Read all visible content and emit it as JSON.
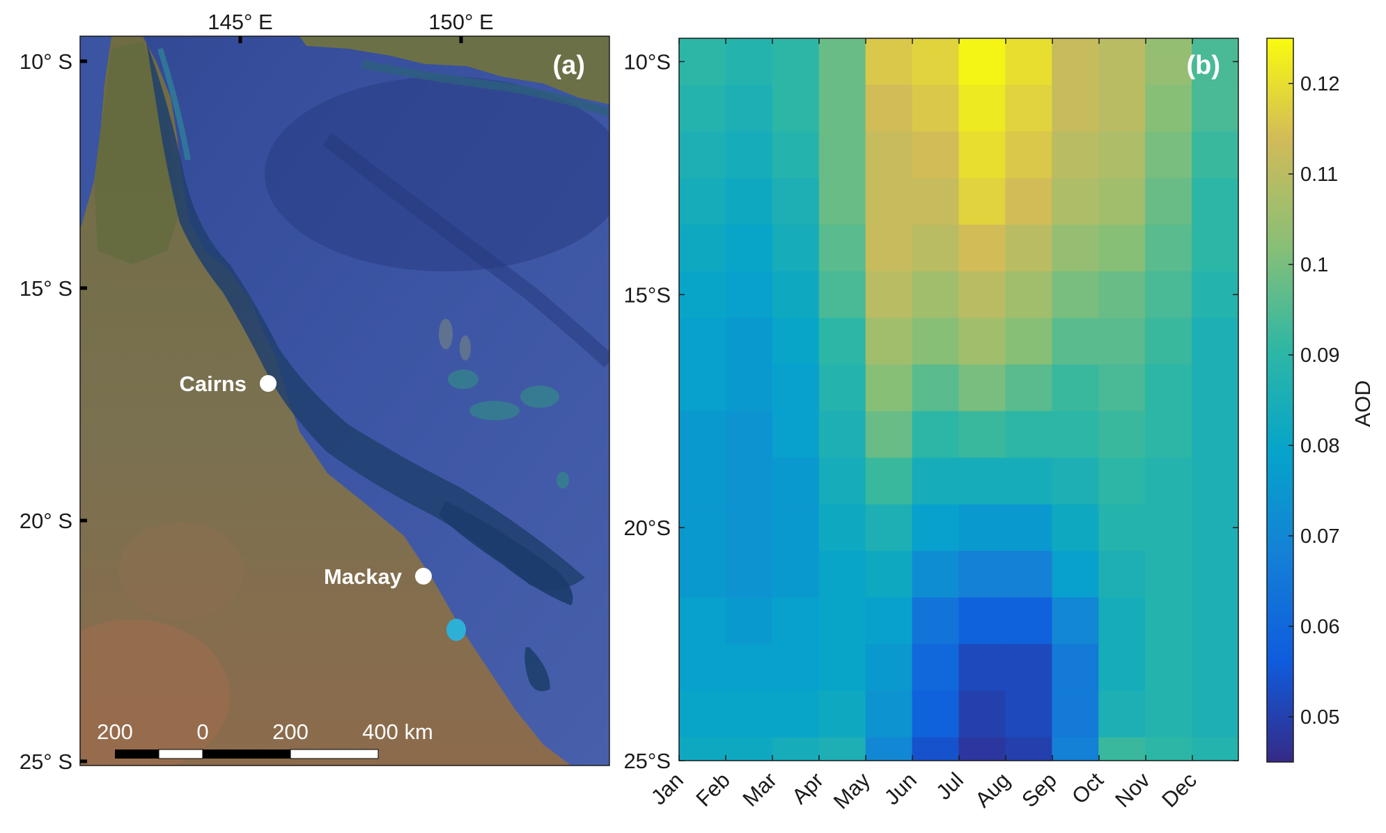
{
  "map_panel": {
    "label": "(a)",
    "lon_ticks": [
      "145° E",
      "150° E"
    ],
    "lat_ticks": [
      "10° S",
      "15° S",
      "20° S",
      "25° S"
    ],
    "cities": [
      {
        "name": "Cairns"
      },
      {
        "name": "Mackay"
      }
    ],
    "scale_bar": {
      "labels": [
        "200",
        "0",
        "200",
        "400 km"
      ]
    },
    "colors": {
      "ocean": "#3f56a0",
      "deep_ocean": "#2c3f86",
      "reef": "#1d4a73",
      "land": "#76714e",
      "arid": "#9b6f4c"
    }
  },
  "chart_panel": {
    "label": "(b)",
    "colorbar_label": "AOD",
    "colormap": "parula",
    "colorbar_ticks": [
      "0.12",
      "0.11",
      "0.1",
      "0.09",
      "0.08",
      "0.07",
      "0.06",
      "0.05"
    ]
  },
  "chart_data": {
    "type": "heatmap",
    "title": "",
    "xlabel": "",
    "ylabel": "",
    "x_tick_labels": [
      "Jan",
      "Feb",
      "Mar",
      "Apr",
      "May",
      "Jun",
      "Jul",
      "Aug",
      "Sep",
      "Oct",
      "Nov",
      "Dec"
    ],
    "y_tick_labels": [
      "10°S",
      "15°S",
      "20°S",
      "25°S"
    ],
    "x_range": [
      1,
      365
    ],
    "y_range": [
      -25,
      -9.5
    ],
    "color_range": [
      0.045,
      0.125
    ],
    "rows_lat": [
      -9.5,
      -10,
      -11,
      -12,
      -13,
      -14,
      -15,
      -16,
      -17,
      -18,
      -19,
      -20,
      -21,
      -22,
      -23,
      -24,
      -25
    ],
    "cols_month": [
      "Jan",
      "Feb",
      "Mar",
      "Apr",
      "May",
      "Jun",
      "Jul",
      "Aug",
      "Sep",
      "Oct",
      "Nov",
      "Dec"
    ],
    "values": [
      [
        0.09,
        0.088,
        0.09,
        0.098,
        0.116,
        0.118,
        0.124,
        0.12,
        0.112,
        0.11,
        0.104,
        0.094
      ],
      [
        0.09,
        0.088,
        0.09,
        0.098,
        0.116,
        0.118,
        0.124,
        0.12,
        0.112,
        0.11,
        0.104,
        0.094
      ],
      [
        0.088,
        0.086,
        0.09,
        0.098,
        0.114,
        0.116,
        0.122,
        0.118,
        0.112,
        0.11,
        0.102,
        0.094
      ],
      [
        0.086,
        0.084,
        0.088,
        0.098,
        0.112,
        0.114,
        0.12,
        0.116,
        0.11,
        0.108,
        0.1,
        0.092
      ],
      [
        0.084,
        0.082,
        0.086,
        0.098,
        0.112,
        0.112,
        0.118,
        0.114,
        0.108,
        0.106,
        0.098,
        0.09
      ],
      [
        0.082,
        0.08,
        0.084,
        0.096,
        0.112,
        0.11,
        0.114,
        0.11,
        0.104,
        0.102,
        0.096,
        0.09
      ],
      [
        0.08,
        0.078,
        0.082,
        0.094,
        0.11,
        0.106,
        0.11,
        0.106,
        0.1,
        0.098,
        0.094,
        0.088
      ],
      [
        0.078,
        0.076,
        0.08,
        0.09,
        0.106,
        0.102,
        0.106,
        0.102,
        0.096,
        0.096,
        0.092,
        0.086
      ],
      [
        0.078,
        0.076,
        0.078,
        0.088,
        0.102,
        0.096,
        0.1,
        0.096,
        0.092,
        0.094,
        0.09,
        0.086
      ],
      [
        0.076,
        0.074,
        0.078,
        0.086,
        0.098,
        0.09,
        0.092,
        0.09,
        0.09,
        0.092,
        0.09,
        0.086
      ],
      [
        0.076,
        0.074,
        0.076,
        0.084,
        0.092,
        0.084,
        0.084,
        0.084,
        0.086,
        0.09,
        0.088,
        0.086
      ],
      [
        0.076,
        0.074,
        0.076,
        0.082,
        0.086,
        0.078,
        0.076,
        0.076,
        0.082,
        0.088,
        0.088,
        0.086
      ],
      [
        0.076,
        0.074,
        0.076,
        0.08,
        0.082,
        0.072,
        0.068,
        0.068,
        0.078,
        0.086,
        0.088,
        0.086
      ],
      [
        0.078,
        0.076,
        0.078,
        0.08,
        0.078,
        0.064,
        0.058,
        0.058,
        0.07,
        0.084,
        0.088,
        0.086
      ],
      [
        0.078,
        0.078,
        0.078,
        0.08,
        0.076,
        0.06,
        0.052,
        0.052,
        0.066,
        0.084,
        0.088,
        0.086
      ],
      [
        0.08,
        0.08,
        0.08,
        0.082,
        0.074,
        0.058,
        0.05,
        0.052,
        0.066,
        0.086,
        0.088,
        0.086
      ],
      [
        0.082,
        0.082,
        0.084,
        0.086,
        0.07,
        0.054,
        0.048,
        0.05,
        0.068,
        0.092,
        0.09,
        0.088
      ]
    ]
  }
}
